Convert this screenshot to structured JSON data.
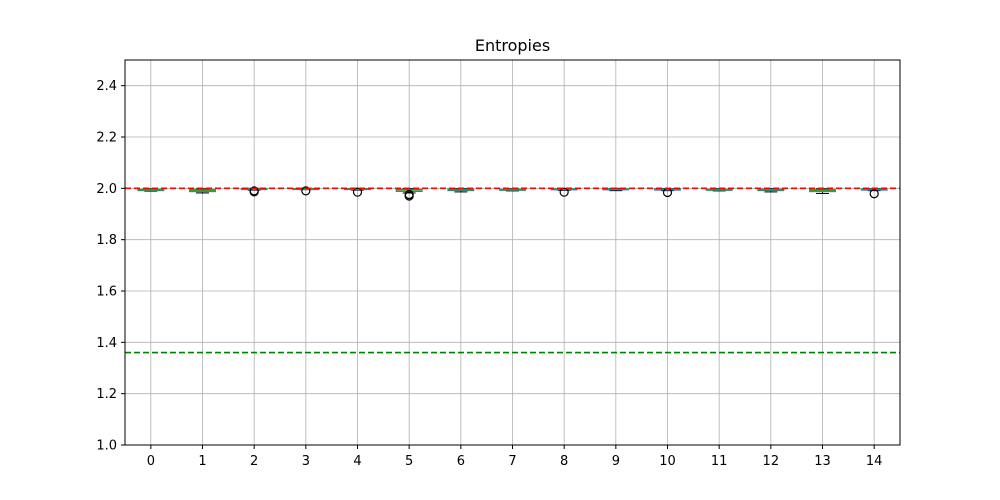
{
  "chart_data": {
    "type": "box",
    "title": "Entropies",
    "xlabel": "",
    "ylabel": "",
    "categories": [
      "0",
      "1",
      "2",
      "3",
      "4",
      "5",
      "6",
      "7",
      "8",
      "9",
      "10",
      "11",
      "12",
      "13",
      "14"
    ],
    "ylim": [
      1.0,
      2.5
    ],
    "yticks": [
      1.0,
      1.2,
      1.4,
      1.6,
      1.8,
      2.0,
      2.2,
      2.4
    ],
    "ytick_labels": [
      "1.0",
      "1.2",
      "1.4",
      "1.6",
      "1.8",
      "2.0",
      "2.2",
      "2.4"
    ],
    "grid": true,
    "boxes": [
      {
        "category": "0",
        "whisker_low": 1.989,
        "q1": 1.991,
        "median": 1.993,
        "q3": 1.996,
        "whisker_high": 1.998,
        "outliers": []
      },
      {
        "category": "1",
        "whisker_low": 1.982,
        "q1": 1.987,
        "median": 1.991,
        "q3": 1.995,
        "whisker_high": 1.998,
        "outliers": []
      },
      {
        "category": "2",
        "whisker_low": 1.993,
        "q1": 1.995,
        "median": 1.997,
        "q3": 1.999,
        "whisker_high": 2.0,
        "outliers": [
          1.986,
          1.99
        ]
      },
      {
        "category": "3",
        "whisker_low": 1.995,
        "q1": 1.997,
        "median": 1.998,
        "q3": 1.999,
        "whisker_high": 2.0,
        "outliers": [
          1.99
        ]
      },
      {
        "category": "4",
        "whisker_low": 1.993,
        "q1": 1.995,
        "median": 1.997,
        "q3": 1.999,
        "whisker_high": 2.0,
        "outliers": [
          1.985
        ]
      },
      {
        "category": "5",
        "whisker_low": 1.982,
        "q1": 1.988,
        "median": 1.993,
        "q3": 1.996,
        "whisker_high": 1.999,
        "outliers": [
          1.976,
          1.97
        ]
      },
      {
        "category": "6",
        "whisker_low": 1.986,
        "q1": 1.991,
        "median": 1.994,
        "q3": 1.997,
        "whisker_high": 1.999,
        "outliers": []
      },
      {
        "category": "7",
        "whisker_low": 1.99,
        "q1": 1.992,
        "median": 1.994,
        "q3": 1.996,
        "whisker_high": 1.998,
        "outliers": []
      },
      {
        "category": "8",
        "whisker_low": 1.992,
        "q1": 1.994,
        "median": 1.996,
        "q3": 1.998,
        "whisker_high": 1.999,
        "outliers": [
          1.985
        ]
      },
      {
        "category": "9",
        "whisker_low": 1.991,
        "q1": 1.994,
        "median": 1.996,
        "q3": 1.998,
        "whisker_high": 2.0,
        "outliers": []
      },
      {
        "category": "10",
        "whisker_low": 1.991,
        "q1": 1.993,
        "median": 1.996,
        "q3": 1.998,
        "whisker_high": 1.999,
        "outliers": [
          1.984
        ]
      },
      {
        "category": "11",
        "whisker_low": 1.99,
        "q1": 1.992,
        "median": 1.994,
        "q3": 1.996,
        "whisker_high": 1.998,
        "outliers": []
      },
      {
        "category": "12",
        "whisker_low": 1.986,
        "q1": 1.991,
        "median": 1.994,
        "q3": 1.997,
        "whisker_high": 1.999,
        "outliers": []
      },
      {
        "category": "13",
        "whisker_low": 1.98,
        "q1": 1.987,
        "median": 1.991,
        "q3": 1.995,
        "whisker_high": 1.998,
        "outliers": []
      },
      {
        "category": "14",
        "whisker_low": 1.991,
        "q1": 1.993,
        "median": 1.996,
        "q3": 1.998,
        "whisker_high": 1.999,
        "outliers": [
          1.979
        ]
      }
    ],
    "reference_lines": [
      {
        "y": 2.0,
        "color": "#ff0000",
        "style": "dashed"
      },
      {
        "y": 1.36,
        "color": "#008000",
        "style": "dashed"
      }
    ],
    "colors": {
      "box": "#1f77b4",
      "median": "#2ca02c",
      "whisker": "#000000",
      "grid": "#b0b0b0",
      "axis": "#000000"
    }
  }
}
